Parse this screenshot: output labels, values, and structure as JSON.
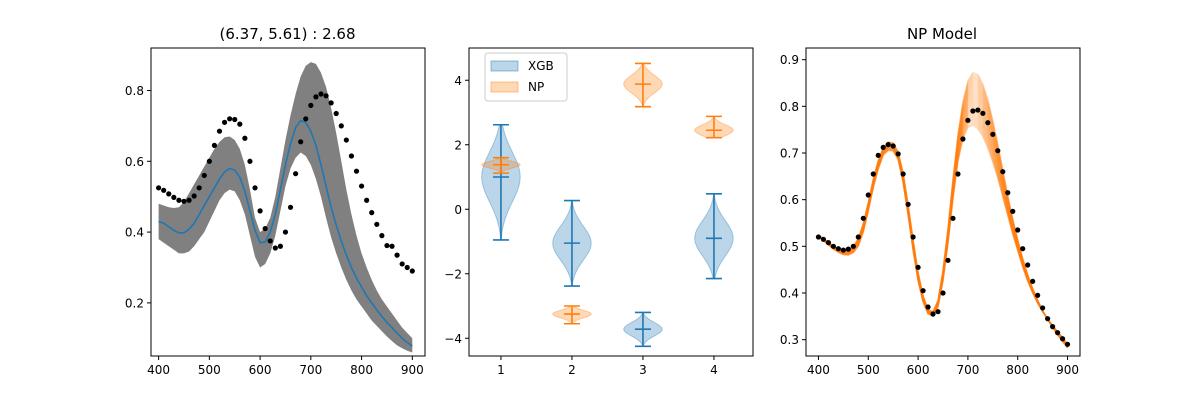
{
  "chart_data": [
    {
      "type": "line",
      "title": "(6.37, 5.61) : 2.68",
      "xlabel": "",
      "ylabel": "",
      "xlim": [
        385,
        925
      ],
      "ylim": [
        0.05,
        0.92
      ],
      "xticks": [
        400,
        500,
        600,
        700,
        800,
        900
      ],
      "yticks": [
        0.2,
        0.4,
        0.6,
        0.8
      ],
      "grid": false,
      "colors": {
        "mean": "#1f77b4",
        "band": "#808080",
        "points": "#000000"
      },
      "x": [
        400,
        410,
        420,
        430,
        440,
        450,
        460,
        470,
        480,
        490,
        500,
        510,
        520,
        530,
        540,
        550,
        560,
        570,
        580,
        590,
        600,
        610,
        620,
        630,
        640,
        650,
        660,
        670,
        680,
        690,
        700,
        710,
        720,
        730,
        740,
        750,
        760,
        770,
        780,
        790,
        800,
        810,
        820,
        830,
        840,
        850,
        860,
        870,
        880,
        890,
        900
      ],
      "series": [
        {
          "role": "band_upper",
          "values": [
            0.48,
            0.475,
            0.47,
            0.468,
            0.47,
            0.485,
            0.51,
            0.535,
            0.56,
            0.585,
            0.61,
            0.635,
            0.655,
            0.668,
            0.67,
            0.66,
            0.635,
            0.59,
            0.52,
            0.44,
            0.4,
            0.41,
            0.44,
            0.5,
            0.58,
            0.66,
            0.73,
            0.79,
            0.84,
            0.87,
            0.88,
            0.875,
            0.85,
            0.81,
            0.75,
            0.68,
            0.6,
            0.52,
            0.45,
            0.39,
            0.34,
            0.3,
            0.265,
            0.235,
            0.21,
            0.19,
            0.17,
            0.15,
            0.13,
            0.115,
            0.1
          ]
        },
        {
          "role": "band_lower",
          "values": [
            0.38,
            0.37,
            0.36,
            0.35,
            0.34,
            0.34,
            0.345,
            0.36,
            0.38,
            0.4,
            0.43,
            0.46,
            0.49,
            0.51,
            0.52,
            0.515,
            0.49,
            0.45,
            0.39,
            0.33,
            0.3,
            0.31,
            0.34,
            0.39,
            0.46,
            0.53,
            0.58,
            0.61,
            0.625,
            0.615,
            0.59,
            0.55,
            0.5,
            0.44,
            0.385,
            0.34,
            0.3,
            0.265,
            0.235,
            0.21,
            0.19,
            0.17,
            0.15,
            0.135,
            0.12,
            0.105,
            0.092,
            0.08,
            0.072,
            0.065,
            0.06
          ]
        },
        {
          "role": "mean",
          "values": [
            0.43,
            0.425,
            0.415,
            0.405,
            0.398,
            0.398,
            0.408,
            0.425,
            0.45,
            0.475,
            0.5,
            0.525,
            0.55,
            0.57,
            0.58,
            0.575,
            0.555,
            0.515,
            0.46,
            0.405,
            0.37,
            0.372,
            0.4,
            0.45,
            0.52,
            0.59,
            0.65,
            0.695,
            0.715,
            0.71,
            0.685,
            0.645,
            0.59,
            0.53,
            0.47,
            0.42,
            0.375,
            0.335,
            0.3,
            0.27,
            0.245,
            0.22,
            0.2,
            0.18,
            0.162,
            0.145,
            0.13,
            0.115,
            0.1,
            0.088,
            0.078
          ]
        },
        {
          "role": "observed",
          "values": [
            0.525,
            0.518,
            0.508,
            0.498,
            0.49,
            0.487,
            0.49,
            0.502,
            0.525,
            0.56,
            0.6,
            0.645,
            0.685,
            0.71,
            0.72,
            0.718,
            0.705,
            0.665,
            0.6,
            0.525,
            0.46,
            0.41,
            0.375,
            0.355,
            0.36,
            0.4,
            0.47,
            0.565,
            0.655,
            0.72,
            0.758,
            0.782,
            0.79,
            0.785,
            0.765,
            0.735,
            0.7,
            0.66,
            0.615,
            0.572,
            0.53,
            0.49,
            0.455,
            0.422,
            0.39,
            0.362,
            0.36,
            0.335,
            0.31,
            0.3,
            0.29
          ]
        }
      ]
    },
    {
      "type": "violin",
      "title": "",
      "xlabel": "",
      "ylabel": "",
      "xlim": [
        0.55,
        4.55
      ],
      "ylim": [
        -4.55,
        5.0
      ],
      "xticks": [
        1,
        2,
        3,
        4
      ],
      "yticks": [
        -4,
        -2,
        0,
        2,
        4
      ],
      "legend_position": "top-left",
      "series": [
        {
          "name": "XGB",
          "color": "#1f77b4",
          "groups": [
            {
              "position": 1,
              "min": -0.95,
              "median": 1.0,
              "max": 2.62
            },
            {
              "position": 2,
              "min": -2.38,
              "median": -1.05,
              "max": 0.27
            },
            {
              "position": 3,
              "min": -4.25,
              "median": -3.72,
              "max": -3.2
            },
            {
              "position": 4,
              "min": -2.15,
              "median": -0.9,
              "max": 0.48
            }
          ]
        },
        {
          "name": "NP",
          "color": "#ff7f0e",
          "groups": [
            {
              "position": 1,
              "min": 1.12,
              "median": 1.38,
              "max": 1.6
            },
            {
              "position": 2,
              "min": -3.55,
              "median": -3.25,
              "max": -3.0
            },
            {
              "position": 3,
              "min": 3.18,
              "median": 3.88,
              "max": 4.52
            },
            {
              "position": 4,
              "min": 2.22,
              "median": 2.45,
              "max": 2.88
            }
          ]
        }
      ]
    },
    {
      "type": "line",
      "title": "NP Model",
      "xlabel": "",
      "ylabel": "",
      "xlim": [
        375,
        925
      ],
      "ylim": [
        0.265,
        0.925
      ],
      "xticks": [
        400,
        500,
        600,
        700,
        800,
        900
      ],
      "yticks": [
        0.3,
        0.4,
        0.5,
        0.6,
        0.7,
        0.8,
        0.9
      ],
      "grid": false,
      "colors": {
        "samples": "#ff7f0e",
        "points": "#000000"
      },
      "x": [
        400,
        410,
        420,
        430,
        440,
        450,
        460,
        470,
        480,
        490,
        500,
        510,
        520,
        530,
        540,
        550,
        560,
        570,
        580,
        590,
        600,
        610,
        620,
        630,
        640,
        650,
        660,
        670,
        680,
        690,
        700,
        710,
        720,
        730,
        740,
        750,
        760,
        770,
        780,
        790,
        800,
        810,
        820,
        830,
        840,
        850,
        860,
        870,
        880,
        890,
        900
      ],
      "series": [
        {
          "role": "observed",
          "values": [
            0.52,
            0.515,
            0.508,
            0.5,
            0.495,
            0.492,
            0.494,
            0.5,
            0.52,
            0.56,
            0.61,
            0.655,
            0.695,
            0.712,
            0.718,
            0.715,
            0.698,
            0.655,
            0.59,
            0.52,
            0.455,
            0.405,
            0.37,
            0.355,
            0.36,
            0.4,
            0.47,
            0.56,
            0.655,
            0.73,
            0.77,
            0.79,
            0.792,
            0.785,
            0.765,
            0.74,
            0.705,
            0.66,
            0.615,
            0.575,
            0.535,
            0.495,
            0.46,
            0.425,
            0.395,
            0.368,
            0.345,
            0.328,
            0.315,
            0.302,
            0.29
          ]
        },
        {
          "role": "sample_low",
          "values": [
            0.52,
            0.512,
            0.503,
            0.494,
            0.487,
            0.482,
            0.481,
            0.486,
            0.5,
            0.53,
            0.575,
            0.625,
            0.665,
            0.695,
            0.705,
            0.704,
            0.685,
            0.635,
            0.565,
            0.49,
            0.425,
            0.38,
            0.355,
            0.35,
            0.37,
            0.425,
            0.505,
            0.6,
            0.68,
            0.73,
            0.755,
            0.76,
            0.752,
            0.735,
            0.71,
            0.68,
            0.645,
            0.605,
            0.565,
            0.525,
            0.49,
            0.455,
            0.425,
            0.4,
            0.378,
            0.36,
            0.345,
            0.33,
            0.318,
            0.305,
            0.29
          ]
        },
        {
          "role": "sample_high",
          "values": [
            0.524,
            0.517,
            0.509,
            0.501,
            0.495,
            0.492,
            0.493,
            0.5,
            0.518,
            0.55,
            0.595,
            0.645,
            0.685,
            0.712,
            0.724,
            0.722,
            0.703,
            0.658,
            0.59,
            0.515,
            0.445,
            0.395,
            0.365,
            0.36,
            0.385,
            0.45,
            0.54,
            0.645,
            0.74,
            0.81,
            0.855,
            0.872,
            0.868,
            0.848,
            0.815,
            0.77,
            0.72,
            0.665,
            0.61,
            0.56,
            0.515,
            0.475,
            0.44,
            0.41,
            0.385,
            0.362,
            0.343,
            0.326,
            0.31,
            0.296,
            0.282
          ]
        }
      ]
    }
  ]
}
